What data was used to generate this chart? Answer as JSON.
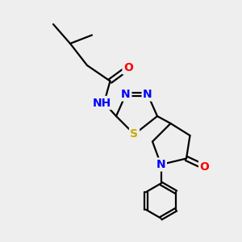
{
  "bg_color": "#eeeeee",
  "atom_colors": {
    "C": "#000000",
    "N": "#0000ff",
    "O": "#ff0000",
    "S": "#ccaa00",
    "H": "#008080"
  },
  "bond_color": "#000000",
  "bond_width": 1.6,
  "font_size_atom": 10
}
